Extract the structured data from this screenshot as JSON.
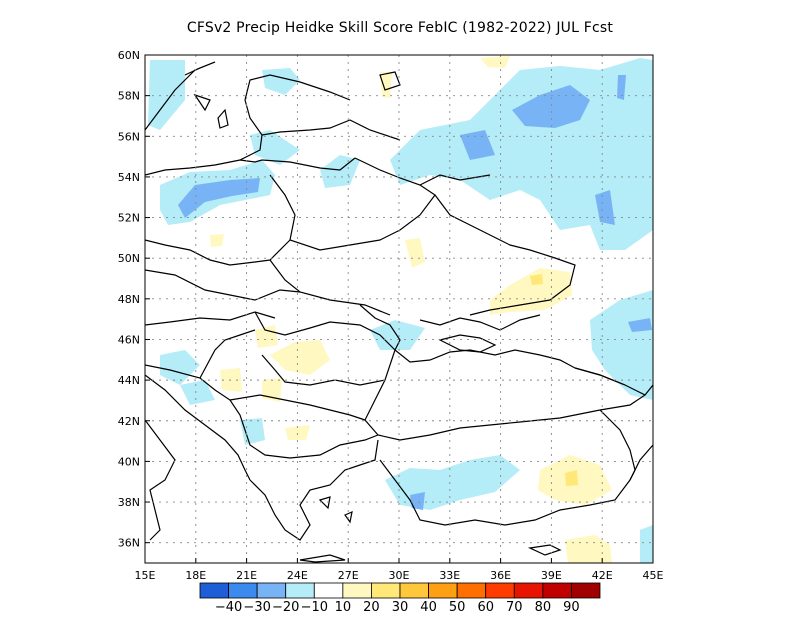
{
  "title": "CFSv2 Precip Heidke Skill Score FebIC (1982-2022) JUL Fcst",
  "map": {
    "lon_range": [
      15,
      45
    ],
    "lat_range": [
      35,
      60
    ],
    "lon_ticks": [
      "15E",
      "18E",
      "21E",
      "24E",
      "27E",
      "30E",
      "33E",
      "36E",
      "39E",
      "42E",
      "45E"
    ],
    "lat_ticks": [
      "36N",
      "38N",
      "40N",
      "42N",
      "44N",
      "46N",
      "48N",
      "50N",
      "52N",
      "54N",
      "56N",
      "58N",
      "60N"
    ]
  },
  "colorbar": {
    "colors": [
      "#1e5fd8",
      "#3c8aee",
      "#78b4f5",
      "#b4ecf8",
      "#ffffff",
      "#fff8c0",
      "#ffe878",
      "#ffc83c",
      "#ffa014",
      "#ff6e00",
      "#ff3c00",
      "#e61400",
      "#c00000",
      "#a00000"
    ],
    "labels": [
      "-40",
      "-30",
      "-20",
      "-10",
      "10",
      "20",
      "30",
      "40",
      "50",
      "60",
      "70",
      "80",
      "90"
    ]
  },
  "chart_data": {
    "type": "heatmap",
    "title": "CFSv2 Precip Heidke Skill Score FebIC (1982-2022) JUL Fcst",
    "x_ticks": [
      "15E",
      "18E",
      "21E",
      "24E",
      "27E",
      "30E",
      "33E",
      "36E",
      "39E",
      "42E",
      "45E"
    ],
    "y_ticks": [
      "36N",
      "38N",
      "40N",
      "42N",
      "44N",
      "46N",
      "48N",
      "50N",
      "52N",
      "54N",
      "56N",
      "58N",
      "60N"
    ],
    "xlim": [
      15,
      45
    ],
    "ylim": [
      35,
      60
    ],
    "levels": [
      -40,
      -30,
      -20,
      -10,
      10,
      20,
      30,
      40,
      50,
      60,
      70,
      80,
      90
    ],
    "grid": true,
    "regions": [
      {
        "level": -10,
        "lon": [
          32.5,
          44.5
        ],
        "lat": [
          52.5,
          59.5
        ]
      },
      {
        "level": -20,
        "lon": [
          36.5,
          40
        ],
        "lat": [
          55.8,
          58.2
        ]
      },
      {
        "level": -10,
        "lon": [
          16,
          24
        ],
        "lat": [
          51.5,
          54.5
        ]
      },
      {
        "level": -20,
        "lon": [
          17,
          21
        ],
        "lat": [
          52.3,
          54.3
        ]
      },
      {
        "level": -10,
        "lon": [
          42,
          45
        ],
        "lat": [
          44,
          48
        ]
      },
      {
        "level": -10,
        "lon": [
          28.5,
          35
        ],
        "lat": [
          37.5,
          40.5
        ]
      },
      {
        "level": 10,
        "lon": [
          35,
          40
        ],
        "lat": [
          47,
          50
        ]
      },
      {
        "level": 10,
        "lon": [
          22,
          26
        ],
        "lat": [
          44,
          46.5
        ]
      },
      {
        "level": 10,
        "lon": [
          38,
          42
        ],
        "lat": [
          37,
          40
        ]
      },
      {
        "level": 10,
        "lon": [
          40,
          42.5
        ],
        "lat": [
          35,
          36.5
        ]
      }
    ]
  }
}
